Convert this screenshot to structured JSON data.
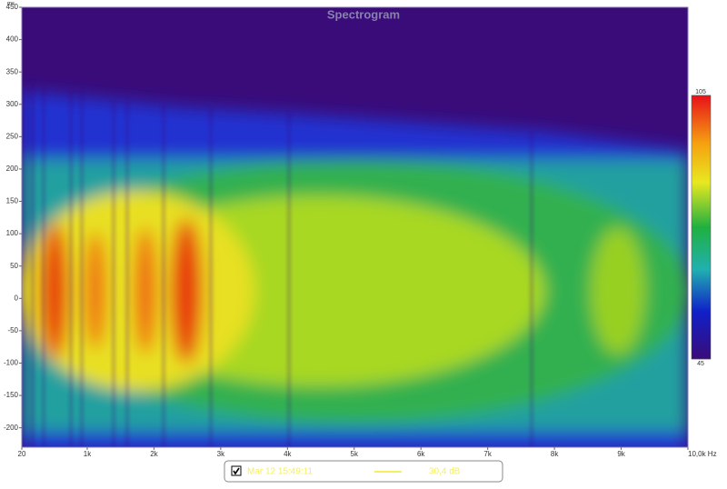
{
  "chart_data": {
    "type": "spectrogram",
    "title": "Spectrogram",
    "y_label": "ms",
    "xlim": [
      20,
      10000
    ],
    "xticks": [
      20,
      {
        "value": 1000,
        "label": "1k"
      },
      {
        "value": 2000,
        "label": "2k"
      },
      {
        "value": 3000,
        "label": "3k"
      },
      {
        "value": 4000,
        "label": "4k"
      },
      {
        "value": 5000,
        "label": "5k"
      },
      {
        "value": 6000,
        "label": "6k"
      },
      {
        "value": 7000,
        "label": "7k"
      },
      {
        "value": 8000,
        "label": "8k"
      },
      {
        "value": 9000,
        "label": "9k"
      },
      {
        "value": 10000,
        "label": "10,0k Hz"
      }
    ],
    "ylim": [
      -230,
      450
    ],
    "yticks": [
      450,
      400,
      350,
      300,
      250,
      200,
      150,
      100,
      50,
      0,
      -50,
      -100,
      -150,
      -200
    ],
    "zlim": [
      45,
      105
    ],
    "zticks": [
      105,
      45
    ],
    "background": "#3a0c7a",
    "legend": {
      "name": "Mar 12 15:49:11",
      "reading": "30,4 dB",
      "color": "#f4f060"
    }
  }
}
